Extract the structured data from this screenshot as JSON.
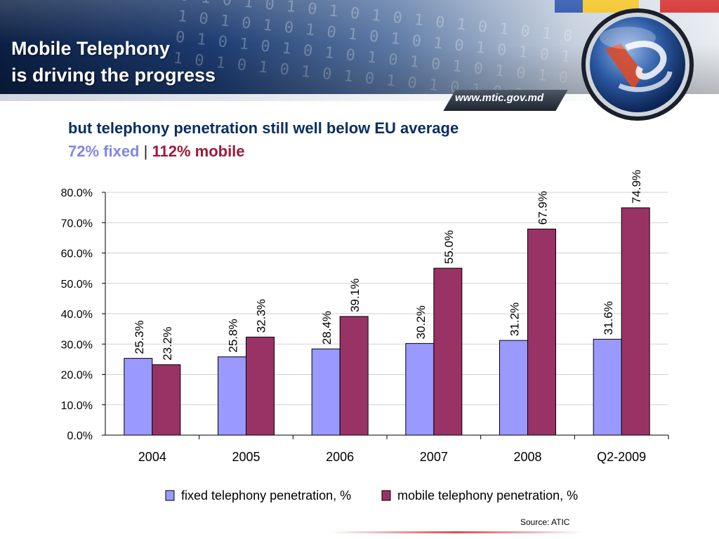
{
  "header": {
    "title_line1": "Mobile Telephony",
    "title_line2": "is driving the progress",
    "url": "www.mtic.gov.md"
  },
  "subtitle": {
    "line1": "but telephony penetration still well below EU average",
    "fixed": "72% fixed",
    "separator": "|",
    "mobile": "112% mobile"
  },
  "colors": {
    "fixed": "#9999ff",
    "mobile": "#993366",
    "title_blue": "#0b2d63",
    "fixed_text": "#7f86e8",
    "mobile_text": "#9b1a3a"
  },
  "chart_data": {
    "type": "bar",
    "categories": [
      "2004",
      "2005",
      "2006",
      "2007",
      "2008",
      "Q2-2009"
    ],
    "series": [
      {
        "name": "fixed telephony penetration, %",
        "values": [
          25.3,
          25.8,
          28.4,
          30.2,
          31.2,
          31.6
        ],
        "labels": [
          "25.3%",
          "25.8%",
          "28.4%",
          "30.2%",
          "31.2%",
          "31.6%"
        ]
      },
      {
        "name": "mobile telephony penetration, %",
        "values": [
          23.2,
          32.3,
          39.1,
          55.0,
          67.9,
          74.9
        ],
        "labels": [
          "23.2%",
          "32.3%",
          "39.1%",
          "55.0%",
          "67.9%",
          "74.9%"
        ]
      }
    ],
    "yticks": [
      "0.0%",
      "10.0%",
      "20.0%",
      "30.0%",
      "40.0%",
      "50.0%",
      "60.0%",
      "70.0%",
      "80.0%"
    ],
    "ylim": [
      0,
      80
    ],
    "grid": true,
    "legend_position": "bottom"
  },
  "source": "Source: ATIC"
}
